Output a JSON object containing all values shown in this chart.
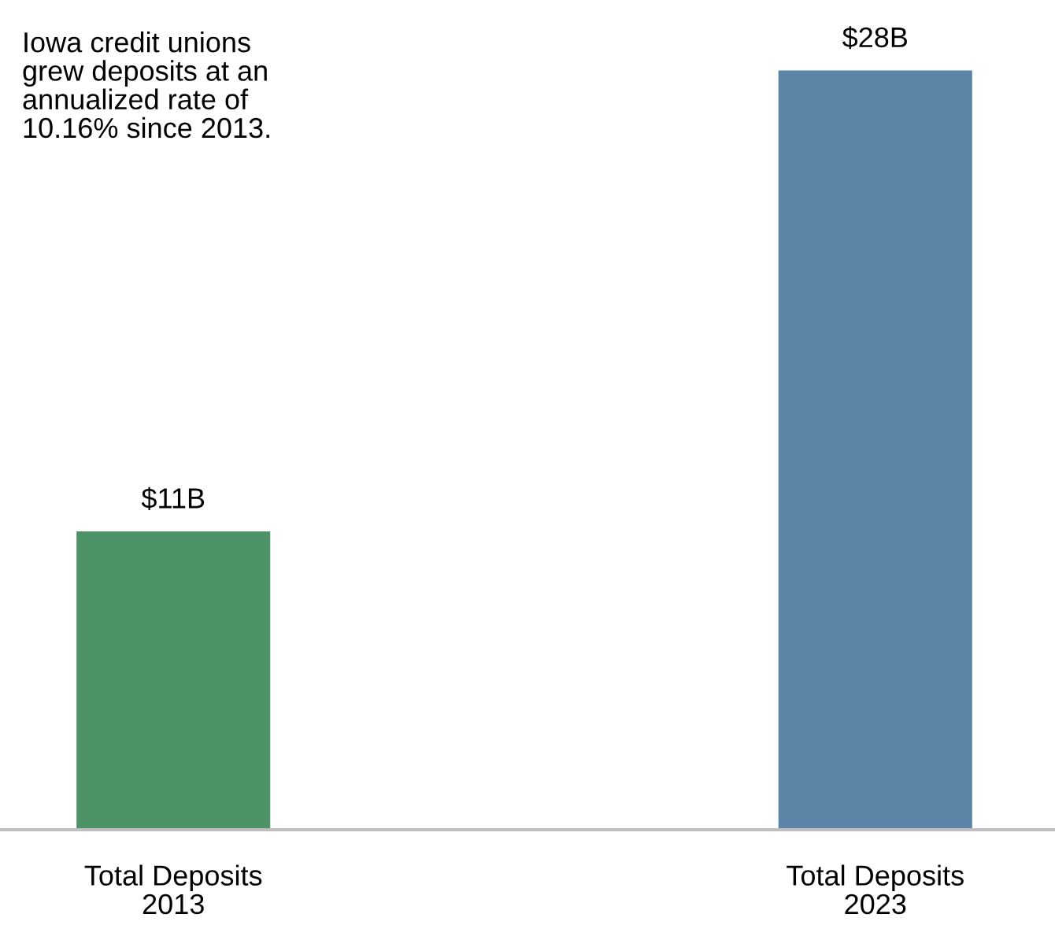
{
  "chart_data": {
    "type": "bar",
    "categories": [
      "Total Deposits\n2013",
      "Total Deposits\n2023"
    ],
    "values": [
      11,
      28
    ],
    "colors": [
      "#4e9268",
      "#5b84a6"
    ],
    "value_labels": [
      "$11B",
      "$28B"
    ],
    "annotations": [
      "Iowa credit unions\ngrew deposits at an\nannualized rate of\n10.16% since 2013."
    ],
    "grid": false,
    "legend": false
  }
}
